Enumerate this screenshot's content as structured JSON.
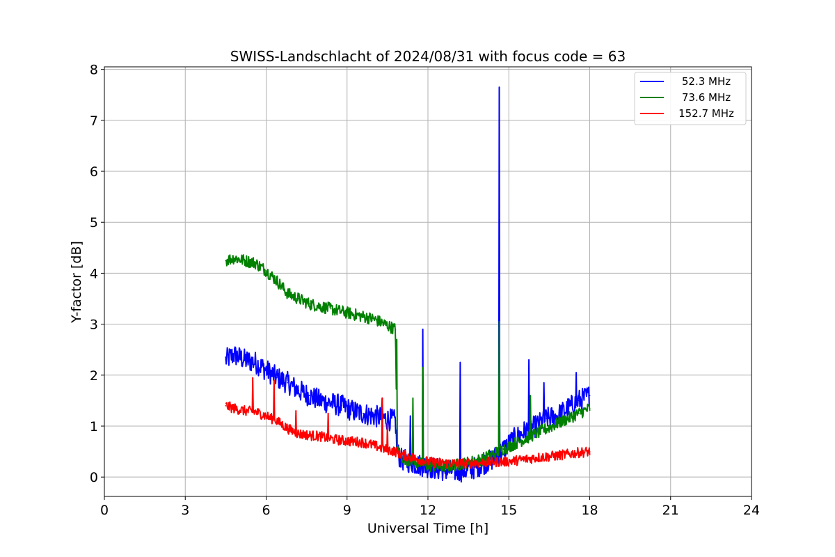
{
  "chart_data": {
    "type": "line",
    "title": "SWISS-Landschlacht of 2024/08/31 with focus code = 63",
    "xlabel": "Universal Time [h]",
    "ylabel": "Y-factor [dB]",
    "xlim": [
      0,
      24
    ],
    "ylim": [
      -0.38,
      8.05
    ],
    "xticks": [
      0,
      3,
      6,
      9,
      12,
      15,
      18,
      21,
      24
    ],
    "yticks": [
      0,
      1,
      2,
      3,
      4,
      5,
      6,
      7,
      8
    ],
    "grid": true,
    "legend_position": "top-right",
    "series": [
      {
        "name": "52.3 MHz",
        "color": "#0000ff",
        "x": [
          4.5,
          4.8,
          5.2,
          5.6,
          6.0,
          6.4,
          6.8,
          7.2,
          7.6,
          8.0,
          8.4,
          8.8,
          9.2,
          9.6,
          10.0,
          10.4,
          10.8,
          10.85,
          11.0,
          11.3,
          11.6,
          12.0,
          12.4,
          12.8,
          13.2,
          13.6,
          14.0,
          14.4,
          14.8,
          15.2,
          15.6,
          16.0,
          16.4,
          16.8,
          17.2,
          17.6,
          18.0
        ],
        "y": [
          2.3,
          2.4,
          2.3,
          2.25,
          2.1,
          1.95,
          1.85,
          1.7,
          1.6,
          1.5,
          1.45,
          1.4,
          1.3,
          1.25,
          1.2,
          1.15,
          1.1,
          0.5,
          0.35,
          0.3,
          0.25,
          0.2,
          0.15,
          0.12,
          0.12,
          0.15,
          0.25,
          0.35,
          0.55,
          0.75,
          0.9,
          1.0,
          1.15,
          1.2,
          1.35,
          1.5,
          1.6
        ],
        "spikes": [
          {
            "x": 10.3,
            "y": 1.55
          },
          {
            "x": 11.35,
            "y": 1.2
          },
          {
            "x": 11.8,
            "y": 2.9
          },
          {
            "x": 13.2,
            "y": 2.25
          },
          {
            "x": 14.65,
            "y": 7.65
          },
          {
            "x": 15.75,
            "y": 2.3
          },
          {
            "x": 16.3,
            "y": 1.85
          },
          {
            "x": 17.5,
            "y": 2.05
          }
        ],
        "noise": 0.22
      },
      {
        "name": "73.6 MHz",
        "color": "#008000",
        "x": [
          4.5,
          4.8,
          5.2,
          5.6,
          6.0,
          6.4,
          6.8,
          7.2,
          7.6,
          8.0,
          8.4,
          8.8,
          9.2,
          9.6,
          10.0,
          10.4,
          10.8,
          10.85,
          11.0,
          11.3,
          11.6,
          12.0,
          12.4,
          12.8,
          13.2,
          13.6,
          14.0,
          14.4,
          14.8,
          15.2,
          15.6,
          16.0,
          16.4,
          16.8,
          17.2,
          17.6,
          18.0
        ],
        "y": [
          4.25,
          4.3,
          4.25,
          4.2,
          4.05,
          3.85,
          3.6,
          3.5,
          3.4,
          3.35,
          3.3,
          3.25,
          3.2,
          3.15,
          3.1,
          3.0,
          2.9,
          0.6,
          0.4,
          0.32,
          0.28,
          0.22,
          0.2,
          0.22,
          0.25,
          0.3,
          0.35,
          0.45,
          0.55,
          0.65,
          0.75,
          0.85,
          0.95,
          1.05,
          1.15,
          1.25,
          1.35
        ],
        "spikes": [
          {
            "x": 10.85,
            "y": 2.7
          },
          {
            "x": 11.45,
            "y": 1.55
          },
          {
            "x": 11.8,
            "y": 2.15
          },
          {
            "x": 14.65,
            "y": 3.05
          },
          {
            "x": 15.8,
            "y": 1.6
          }
        ],
        "noise": 0.12
      },
      {
        "name": "152.7 MHz",
        "color": "#ff0000",
        "x": [
          4.5,
          4.8,
          5.2,
          5.6,
          6.0,
          6.4,
          6.8,
          7.2,
          7.6,
          8.0,
          8.4,
          8.8,
          9.2,
          9.6,
          10.0,
          10.4,
          10.8,
          11.0,
          11.3,
          11.6,
          12.0,
          12.4,
          12.8,
          13.2,
          13.6,
          14.0,
          14.4,
          14.8,
          15.2,
          15.6,
          16.0,
          16.4,
          16.8,
          17.2,
          17.6,
          18.0
        ],
        "y": [
          1.4,
          1.35,
          1.3,
          1.28,
          1.2,
          1.1,
          0.95,
          0.85,
          0.82,
          0.8,
          0.75,
          0.72,
          0.7,
          0.68,
          0.62,
          0.55,
          0.5,
          0.45,
          0.4,
          0.35,
          0.3,
          0.28,
          0.27,
          0.27,
          0.27,
          0.28,
          0.3,
          0.3,
          0.32,
          0.35,
          0.38,
          0.4,
          0.42,
          0.45,
          0.48,
          0.5
        ],
        "spikes": [
          {
            "x": 5.5,
            "y": 1.95
          },
          {
            "x": 6.3,
            "y": 1.9
          },
          {
            "x": 7.1,
            "y": 1.3
          },
          {
            "x": 8.3,
            "y": 1.25
          },
          {
            "x": 10.3,
            "y": 1.55
          },
          {
            "x": 10.5,
            "y": 1.05
          }
        ],
        "noise": 0.1
      }
    ]
  }
}
